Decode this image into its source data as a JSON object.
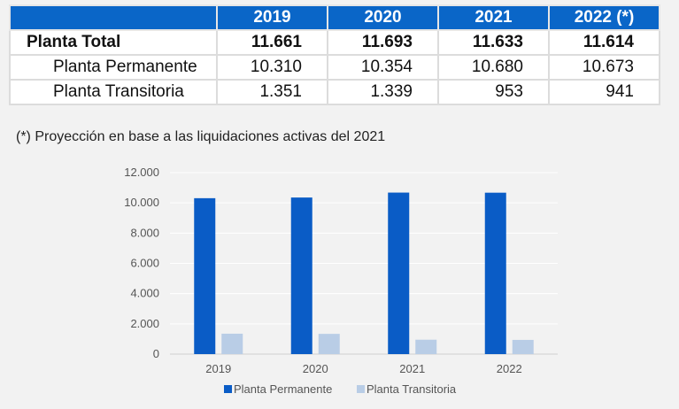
{
  "table": {
    "headers": [
      "",
      "2019",
      "2020",
      "2021",
      "2022 (*)"
    ],
    "rows": [
      {
        "label": "Planta Total",
        "values": [
          "11.661",
          "11.693",
          "11.633",
          "11.614"
        ],
        "bold": true
      },
      {
        "label": "Planta Permanente",
        "values": [
          "10.310",
          "10.354",
          "10.680",
          "10.673"
        ],
        "bold": false
      },
      {
        "label": "Planta Transitoria",
        "values": [
          "1.351",
          "1.339",
          "953",
          "941"
        ],
        "bold": false
      }
    ]
  },
  "note": "(*) Proyección en base a las liquidaciones activas del 2021",
  "chart_data": {
    "type": "bar",
    "title": "",
    "xlabel": "",
    "ylabel": "",
    "categories": [
      "2019",
      "2020",
      "2021",
      "2022"
    ],
    "series": [
      {
        "name": "Planta Permanente",
        "values": [
          10310,
          10354,
          10680,
          10673
        ],
        "color": "#0a5cc6"
      },
      {
        "name": "Planta Transitoria",
        "values": [
          1351,
          1339,
          953,
          941
        ],
        "color": "#b9cde6"
      }
    ],
    "ylim": [
      0,
      12000
    ],
    "yticks": [
      0,
      2000,
      4000,
      6000,
      8000,
      10000,
      12000
    ],
    "ytick_labels": [
      "0",
      "2.000",
      "4.000",
      "6.000",
      "8.000",
      "10.000",
      "12.000"
    ],
    "grid": true,
    "legend_position": "bottom"
  }
}
